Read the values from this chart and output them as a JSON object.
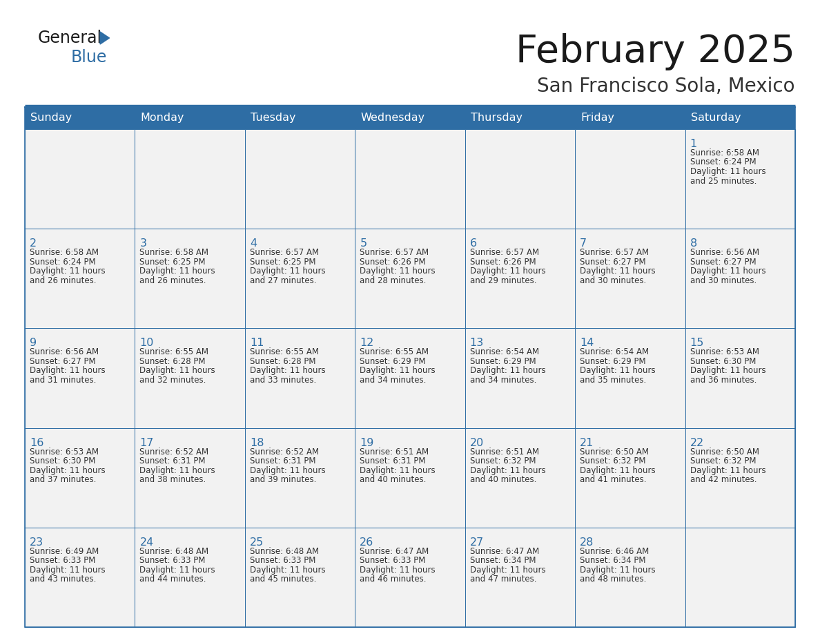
{
  "title": "February 2025",
  "subtitle": "San Francisco Sola, Mexico",
  "header_bg_color": "#2E6DA4",
  "header_text_color": "#FFFFFF",
  "cell_bg_color": "#F2F2F2",
  "border_color": "#2E6DA4",
  "day_names": [
    "Sunday",
    "Monday",
    "Tuesday",
    "Wednesday",
    "Thursday",
    "Friday",
    "Saturday"
  ],
  "title_color": "#1a1a1a",
  "subtitle_color": "#333333",
  "cell_number_color": "#2E6DA4",
  "cell_text_color": "#333333",
  "logo_black_color": "#1a1a1a",
  "logo_blue_color": "#2E6DA4",
  "calendar": [
    [
      null,
      null,
      null,
      null,
      null,
      null,
      {
        "day": "1",
        "sunrise": "6:58 AM",
        "sunset": "6:24 PM",
        "dl_min": "25 minutes."
      }
    ],
    [
      {
        "day": "2",
        "sunrise": "6:58 AM",
        "sunset": "6:24 PM",
        "dl_min": "26 minutes."
      },
      {
        "day": "3",
        "sunrise": "6:58 AM",
        "sunset": "6:25 PM",
        "dl_min": "26 minutes."
      },
      {
        "day": "4",
        "sunrise": "6:57 AM",
        "sunset": "6:25 PM",
        "dl_min": "27 minutes."
      },
      {
        "day": "5",
        "sunrise": "6:57 AM",
        "sunset": "6:26 PM",
        "dl_min": "28 minutes."
      },
      {
        "day": "6",
        "sunrise": "6:57 AM",
        "sunset": "6:26 PM",
        "dl_min": "29 minutes."
      },
      {
        "day": "7",
        "sunrise": "6:57 AM",
        "sunset": "6:27 PM",
        "dl_min": "30 minutes."
      },
      {
        "day": "8",
        "sunrise": "6:56 AM",
        "sunset": "6:27 PM",
        "dl_min": "30 minutes."
      }
    ],
    [
      {
        "day": "9",
        "sunrise": "6:56 AM",
        "sunset": "6:27 PM",
        "dl_min": "31 minutes."
      },
      {
        "day": "10",
        "sunrise": "6:55 AM",
        "sunset": "6:28 PM",
        "dl_min": "32 minutes."
      },
      {
        "day": "11",
        "sunrise": "6:55 AM",
        "sunset": "6:28 PM",
        "dl_min": "33 minutes."
      },
      {
        "day": "12",
        "sunrise": "6:55 AM",
        "sunset": "6:29 PM",
        "dl_min": "34 minutes."
      },
      {
        "day": "13",
        "sunrise": "6:54 AM",
        "sunset": "6:29 PM",
        "dl_min": "34 minutes."
      },
      {
        "day": "14",
        "sunrise": "6:54 AM",
        "sunset": "6:29 PM",
        "dl_min": "35 minutes."
      },
      {
        "day": "15",
        "sunrise": "6:53 AM",
        "sunset": "6:30 PM",
        "dl_min": "36 minutes."
      }
    ],
    [
      {
        "day": "16",
        "sunrise": "6:53 AM",
        "sunset": "6:30 PM",
        "dl_min": "37 minutes."
      },
      {
        "day": "17",
        "sunrise": "6:52 AM",
        "sunset": "6:31 PM",
        "dl_min": "38 minutes."
      },
      {
        "day": "18",
        "sunrise": "6:52 AM",
        "sunset": "6:31 PM",
        "dl_min": "39 minutes."
      },
      {
        "day": "19",
        "sunrise": "6:51 AM",
        "sunset": "6:31 PM",
        "dl_min": "40 minutes."
      },
      {
        "day": "20",
        "sunrise": "6:51 AM",
        "sunset": "6:32 PM",
        "dl_min": "40 minutes."
      },
      {
        "day": "21",
        "sunrise": "6:50 AM",
        "sunset": "6:32 PM",
        "dl_min": "41 minutes."
      },
      {
        "day": "22",
        "sunrise": "6:50 AM",
        "sunset": "6:32 PM",
        "dl_min": "42 minutes."
      }
    ],
    [
      {
        "day": "23",
        "sunrise": "6:49 AM",
        "sunset": "6:33 PM",
        "dl_min": "43 minutes."
      },
      {
        "day": "24",
        "sunrise": "6:48 AM",
        "sunset": "6:33 PM",
        "dl_min": "44 minutes."
      },
      {
        "day": "25",
        "sunrise": "6:48 AM",
        "sunset": "6:33 PM",
        "dl_min": "45 minutes."
      },
      {
        "day": "26",
        "sunrise": "6:47 AM",
        "sunset": "6:33 PM",
        "dl_min": "46 minutes."
      },
      {
        "day": "27",
        "sunrise": "6:47 AM",
        "sunset": "6:34 PM",
        "dl_min": "47 minutes."
      },
      {
        "day": "28",
        "sunrise": "6:46 AM",
        "sunset": "6:34 PM",
        "dl_min": "48 minutes."
      },
      null
    ]
  ]
}
